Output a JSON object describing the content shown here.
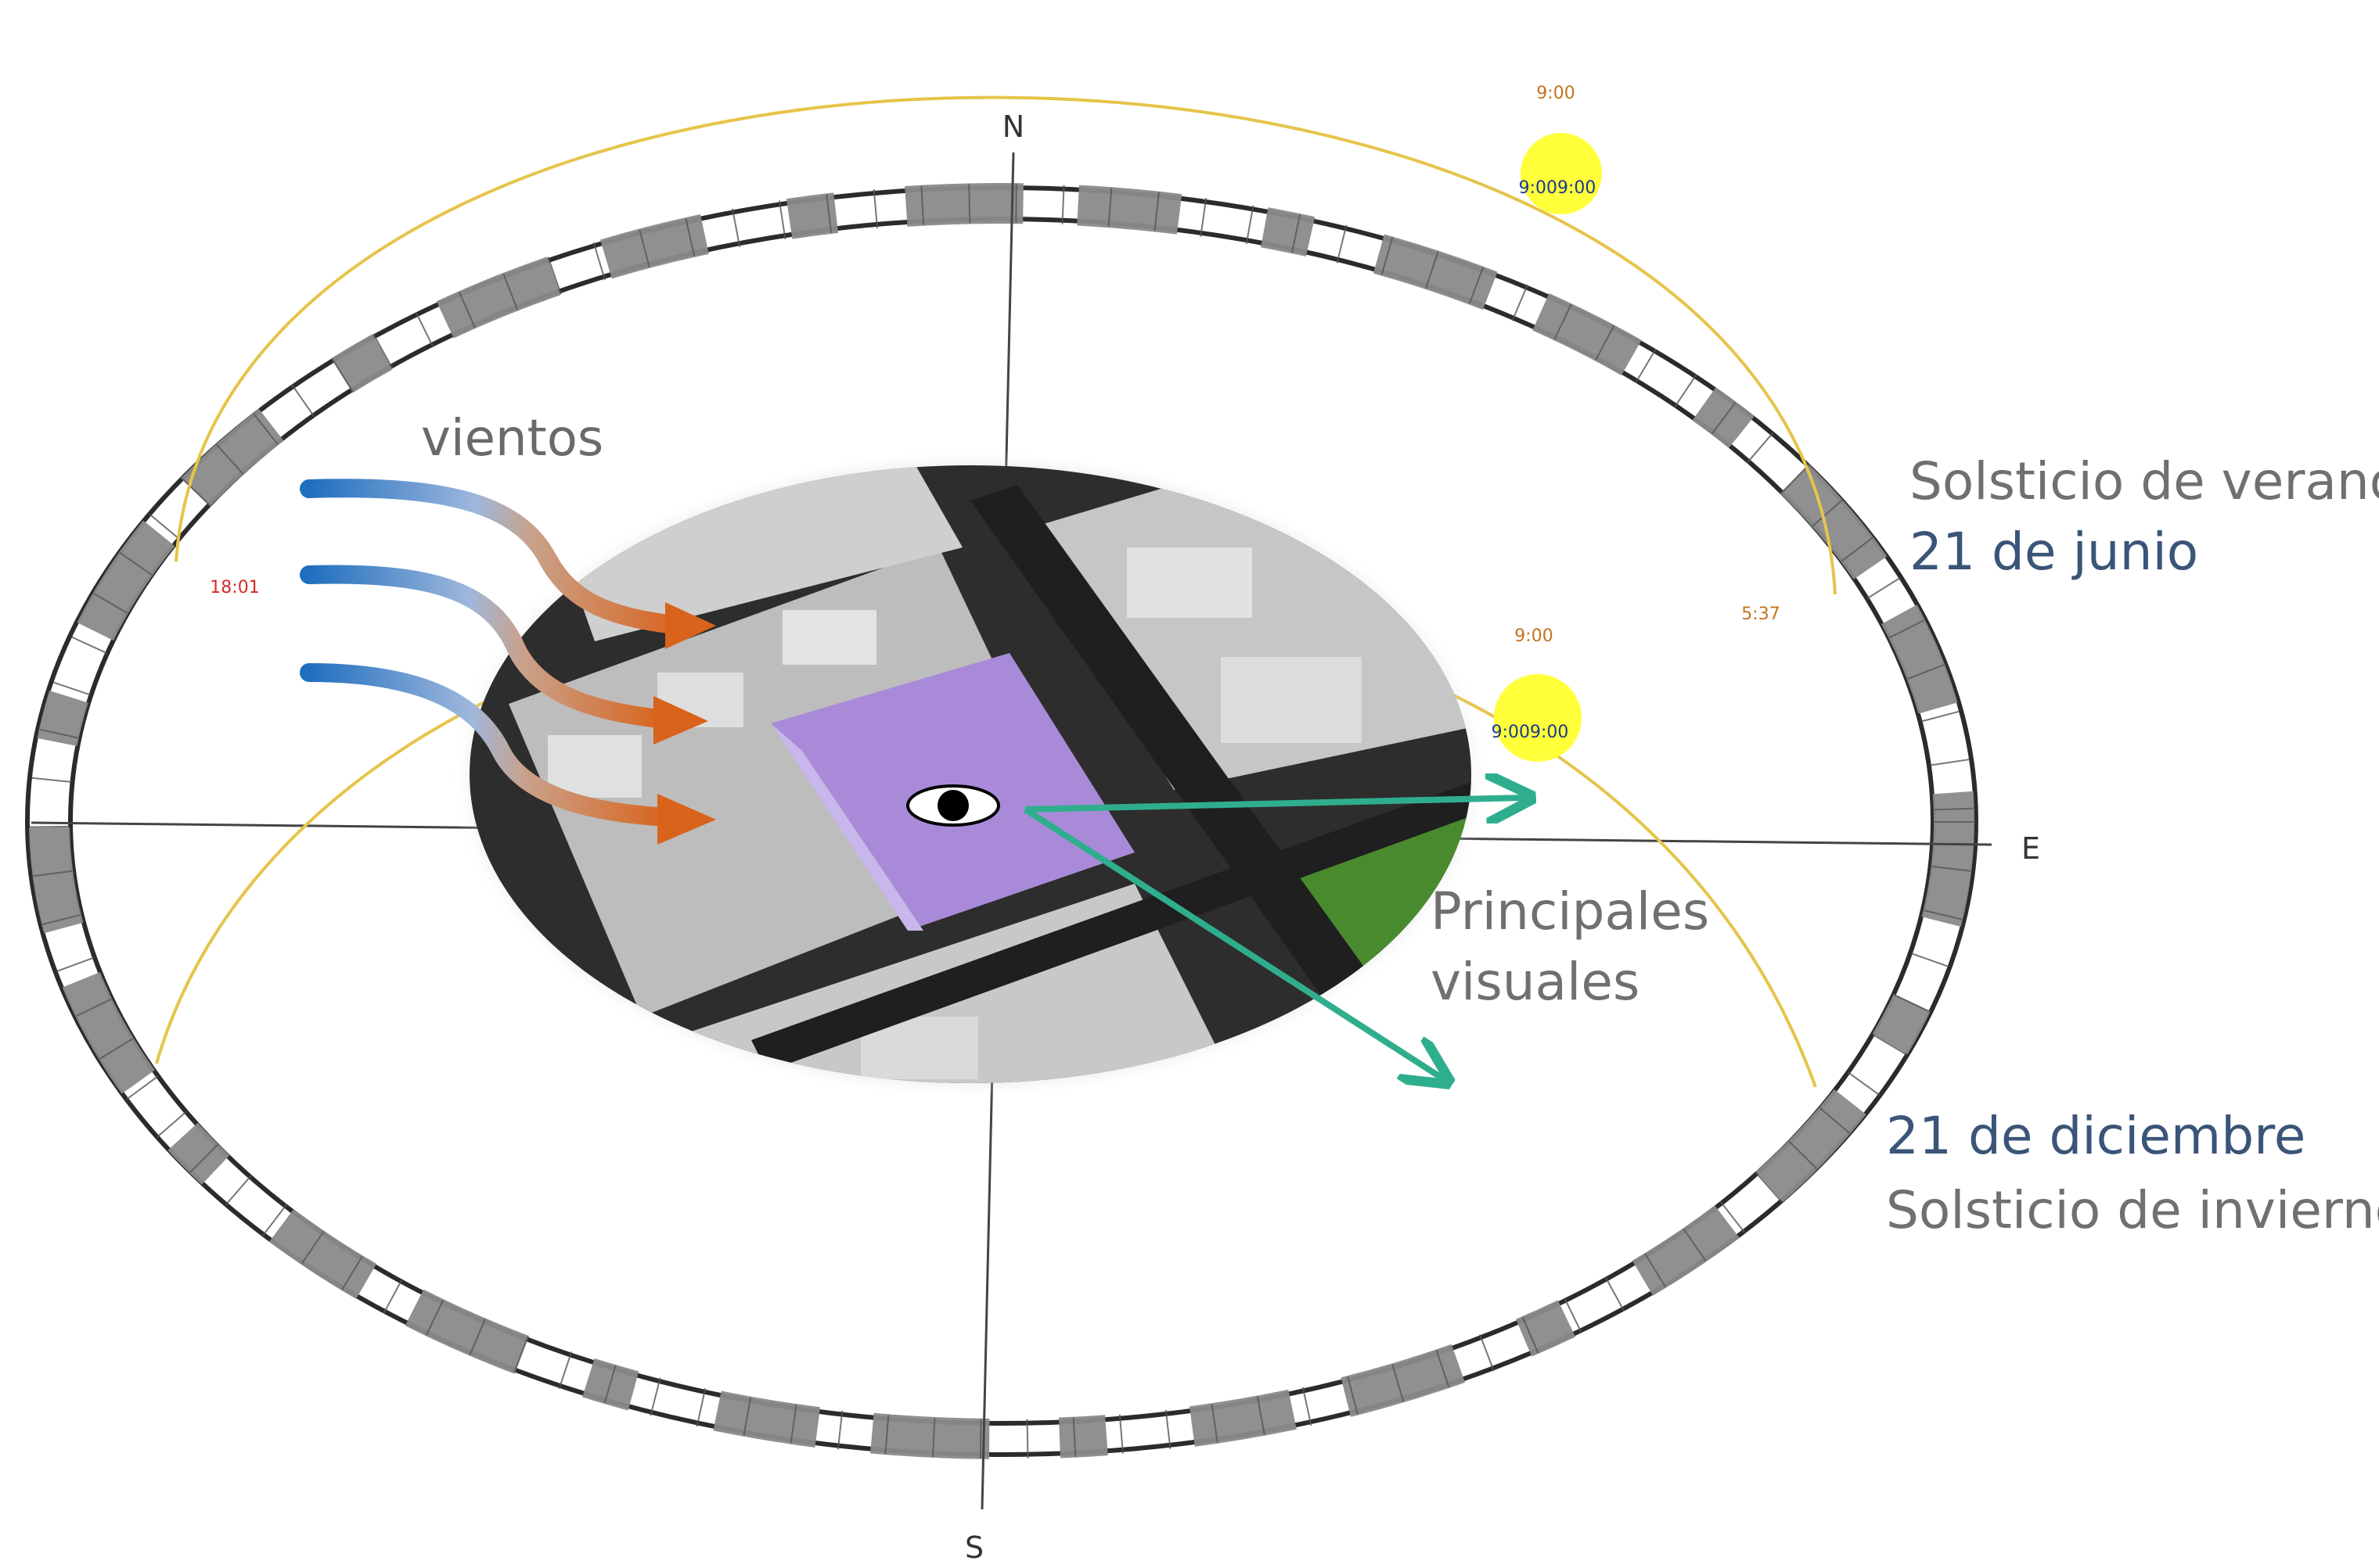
{
  "compass": {
    "north": "N",
    "south": "S",
    "east": "E"
  },
  "sun_summer": {
    "time_top": "9:00",
    "time_on_sun": "9:009:00"
  },
  "sun_winter": {
    "time_top": "9:00",
    "time_on_sun": "9:009:00"
  },
  "time_left_red": "18:01",
  "time_right_orange": "5:37",
  "labels": {
    "vientos": "vientos",
    "summer_title": "Solsticio de verano",
    "summer_date": "21 de junio",
    "winter_date": "21 de diciembre",
    "winter_title": "Solsticio de invierno",
    "visuales_line1": "Principales",
    "visuales_line2": "visuales"
  },
  "colors": {
    "sun": "#ffff3a",
    "sun_path": "#e6c44a",
    "wind_blue": "#1f6fbf",
    "wind_orange": "#d9631b",
    "view_arrow": "#2fae8e",
    "site_purple": "#a98ad8",
    "ring_dark": "#8a8a8a",
    "park_green": "#4a8a2e"
  }
}
